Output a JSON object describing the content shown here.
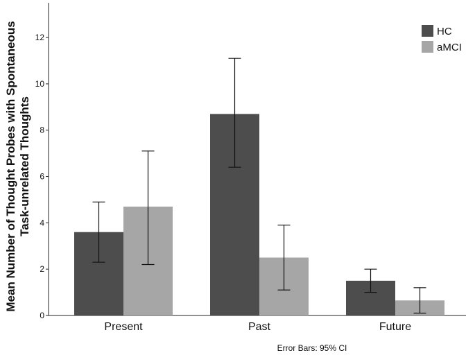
{
  "chart_data": {
    "type": "bar",
    "categories": [
      "Present",
      "Past",
      "Future"
    ],
    "series": [
      {
        "name": "HC",
        "color": "#4d4d4d",
        "values": [
          3.6,
          8.7,
          1.5
        ],
        "ci_low": [
          2.3,
          6.4,
          1.0
        ],
        "ci_high": [
          4.9,
          11.1,
          2.0
        ]
      },
      {
        "name": "aMCI",
        "color": "#a6a6a6",
        "values": [
          4.7,
          2.5,
          0.65
        ],
        "ci_low": [
          2.2,
          1.1,
          0.1
        ],
        "ci_high": [
          7.1,
          3.9,
          1.2
        ]
      }
    ],
    "ylabel_line1": "Mean Number of Thought Probes with Spontaneous",
    "ylabel_line2": "Task-unrelated Thoughts",
    "xlabel": "",
    "ylim": [
      0,
      13.5
    ],
    "yticks": [
      0,
      2,
      4,
      6,
      8,
      10,
      12
    ],
    "legend_position": "top-right",
    "footnote": "Error Bars: 95% CI",
    "grid": false
  }
}
